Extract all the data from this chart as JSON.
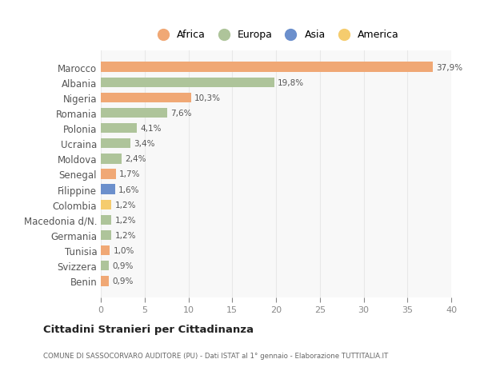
{
  "countries": [
    "Marocco",
    "Albania",
    "Nigeria",
    "Romania",
    "Polonia",
    "Ucraina",
    "Moldova",
    "Senegal",
    "Filippine",
    "Colombia",
    "Macedonia d/N.",
    "Germania",
    "Tunisia",
    "Svizzera",
    "Benin"
  ],
  "values": [
    37.9,
    19.8,
    10.3,
    7.6,
    4.1,
    3.4,
    2.4,
    1.7,
    1.6,
    1.2,
    1.2,
    1.2,
    1.0,
    0.9,
    0.9
  ],
  "labels": [
    "37,9%",
    "19,8%",
    "10,3%",
    "7,6%",
    "4,1%",
    "3,4%",
    "2,4%",
    "1,7%",
    "1,6%",
    "1,2%",
    "1,2%",
    "1,2%",
    "1,0%",
    "0,9%",
    "0,9%"
  ],
  "continents": [
    "Africa",
    "Europa",
    "Africa",
    "Europa",
    "Europa",
    "Europa",
    "Europa",
    "Africa",
    "Asia",
    "America",
    "Europa",
    "Europa",
    "Africa",
    "Europa",
    "Africa"
  ],
  "continent_colors": {
    "Africa": "#f0a875",
    "Europa": "#aec49a",
    "Asia": "#6b8fcc",
    "America": "#f5cc6e"
  },
  "legend_order": [
    "Africa",
    "Europa",
    "Asia",
    "America"
  ],
  "title": "Cittadini Stranieri per Cittadinanza",
  "subtitle": "COMUNE DI SASSOCORVARO AUDITORE (PU) - Dati ISTAT al 1° gennaio - Elaborazione TUTTITALIA.IT",
  "xlim": [
    0,
    40
  ],
  "xticks": [
    0,
    5,
    10,
    15,
    20,
    25,
    30,
    35,
    40
  ],
  "bg_color": "#ffffff",
  "plot_bg_color": "#f8f8f8",
  "grid_color": "#e8e8e8"
}
